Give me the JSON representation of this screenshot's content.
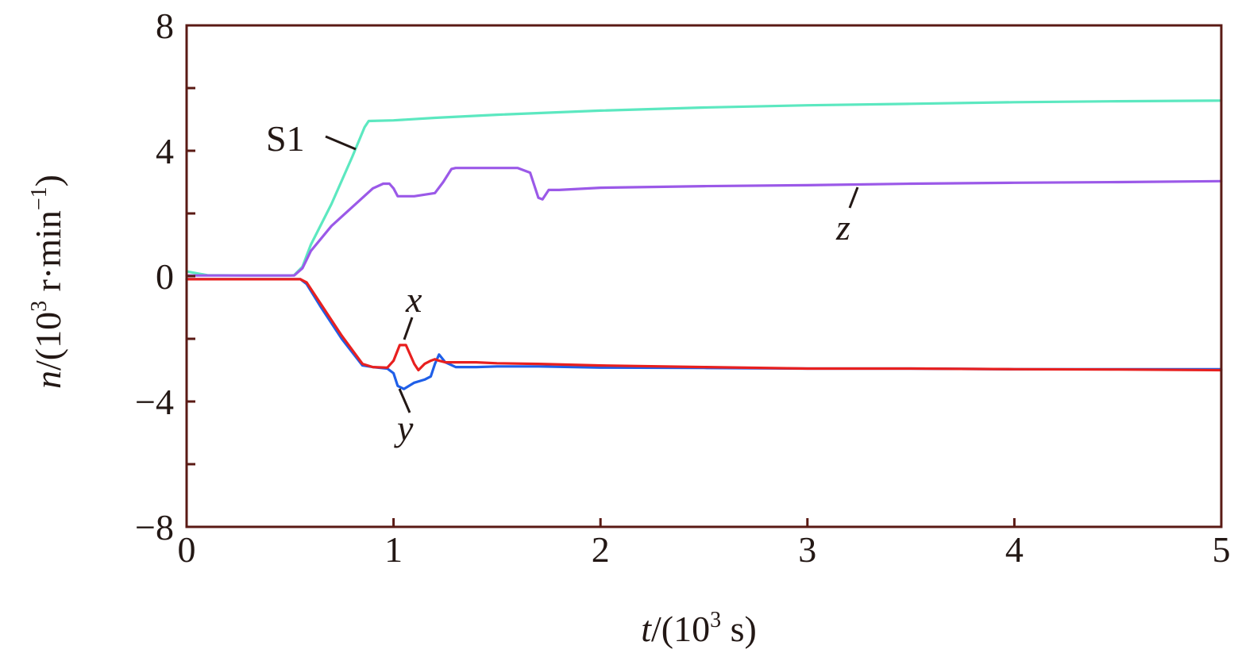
{
  "chart_data": {
    "type": "line",
    "title": "",
    "xlabel": {
      "var": "t",
      "unit_pre": "/(10",
      "unit_sup": "3",
      "unit_post": " s)"
    },
    "ylabel": {
      "var": "n",
      "unit_pre": "/(10",
      "unit_sup": "3",
      "unit_mid": " r·min",
      "unit_sup2": "−1",
      "unit_post": ")"
    },
    "xlim": [
      0,
      5
    ],
    "ylim": [
      -8,
      8
    ],
    "xticks": [
      0,
      1,
      2,
      3,
      4,
      5
    ],
    "xtick_labels": [
      "0",
      "1",
      "2",
      "3",
      "4",
      "5"
    ],
    "yticks": [
      -8,
      -4,
      0,
      4,
      8
    ],
    "ytick_labels": [
      "−8",
      "−4",
      "0",
      "4",
      "8"
    ],
    "y_minor_ticks": [
      -6,
      -2,
      2,
      6
    ],
    "grid": false,
    "legend": "none",
    "series": [
      {
        "name": "S1",
        "color": "#5ce8c0",
        "x": [
          0,
          0.1,
          0.3,
          0.5,
          0.52,
          0.56,
          0.6,
          0.7,
          0.8,
          0.86,
          0.88,
          1.0,
          1.2,
          1.5,
          2.0,
          2.5,
          3.0,
          3.5,
          4.0,
          4.5,
          5.0
        ],
        "y": [
          0.15,
          0.03,
          0.02,
          0.02,
          0.03,
          0.3,
          1.0,
          2.3,
          3.8,
          4.75,
          4.95,
          4.97,
          5.05,
          5.15,
          5.28,
          5.38,
          5.45,
          5.5,
          5.55,
          5.58,
          5.6
        ]
      },
      {
        "name": "z",
        "color": "#9b59e8",
        "x": [
          0,
          0.5,
          0.52,
          0.56,
          0.6,
          0.7,
          0.8,
          0.9,
          0.95,
          0.98,
          1.0,
          1.02,
          1.1,
          1.2,
          1.24,
          1.28,
          1.3,
          1.4,
          1.5,
          1.6,
          1.66,
          1.7,
          1.72,
          1.75,
          1.8,
          2.0,
          2.5,
          3.0,
          3.5,
          4.0,
          4.5,
          5.0
        ],
        "y": [
          0.02,
          0.02,
          0.02,
          0.25,
          0.8,
          1.6,
          2.2,
          2.8,
          2.95,
          2.95,
          2.8,
          2.55,
          2.55,
          2.65,
          3.0,
          3.42,
          3.45,
          3.45,
          3.45,
          3.45,
          3.3,
          2.5,
          2.45,
          2.75,
          2.75,
          2.82,
          2.87,
          2.9,
          2.95,
          2.98,
          3.0,
          3.03
        ]
      },
      {
        "name": "y",
        "color": "#1f5fe8",
        "x": [
          0,
          0.5,
          0.55,
          0.58,
          0.65,
          0.75,
          0.85,
          0.9,
          0.97,
          1.0,
          1.02,
          1.05,
          1.1,
          1.15,
          1.18,
          1.2,
          1.22,
          1.25,
          1.3,
          1.4,
          1.5,
          1.7,
          2.0,
          2.5,
          3.0,
          3.5,
          4.0,
          4.5,
          5.0
        ],
        "y": [
          -0.1,
          -0.1,
          -0.1,
          -0.25,
          -1.0,
          -2.0,
          -2.85,
          -2.9,
          -2.95,
          -3.1,
          -3.5,
          -3.6,
          -3.4,
          -3.3,
          -3.2,
          -2.8,
          -2.5,
          -2.75,
          -2.9,
          -2.9,
          -2.88,
          -2.88,
          -2.92,
          -2.93,
          -2.95,
          -2.95,
          -2.97,
          -2.97,
          -2.97
        ]
      },
      {
        "name": "x",
        "color": "#e8201f",
        "x": [
          0,
          0.5,
          0.55,
          0.58,
          0.65,
          0.75,
          0.85,
          0.9,
          0.97,
          1.0,
          1.03,
          1.06,
          1.1,
          1.12,
          1.15,
          1.18,
          1.2,
          1.22,
          1.25,
          1.3,
          1.4,
          1.5,
          1.7,
          2.0,
          2.5,
          3.0,
          3.5,
          4.0,
          4.5,
          5.0
        ],
        "y": [
          -0.1,
          -0.1,
          -0.1,
          -0.2,
          -0.9,
          -1.9,
          -2.8,
          -2.9,
          -2.92,
          -2.7,
          -2.2,
          -2.2,
          -2.8,
          -3.0,
          -2.8,
          -2.7,
          -2.65,
          -2.7,
          -2.75,
          -2.75,
          -2.75,
          -2.78,
          -2.8,
          -2.85,
          -2.9,
          -2.95,
          -2.95,
          -2.97,
          -2.98,
          -3.0
        ]
      }
    ],
    "annotations": [
      {
        "label": "S1",
        "italic": false
      },
      {
        "label": "z",
        "italic": true
      },
      {
        "label": "x",
        "italic": true
      },
      {
        "label": "y",
        "italic": true
      }
    ]
  }
}
